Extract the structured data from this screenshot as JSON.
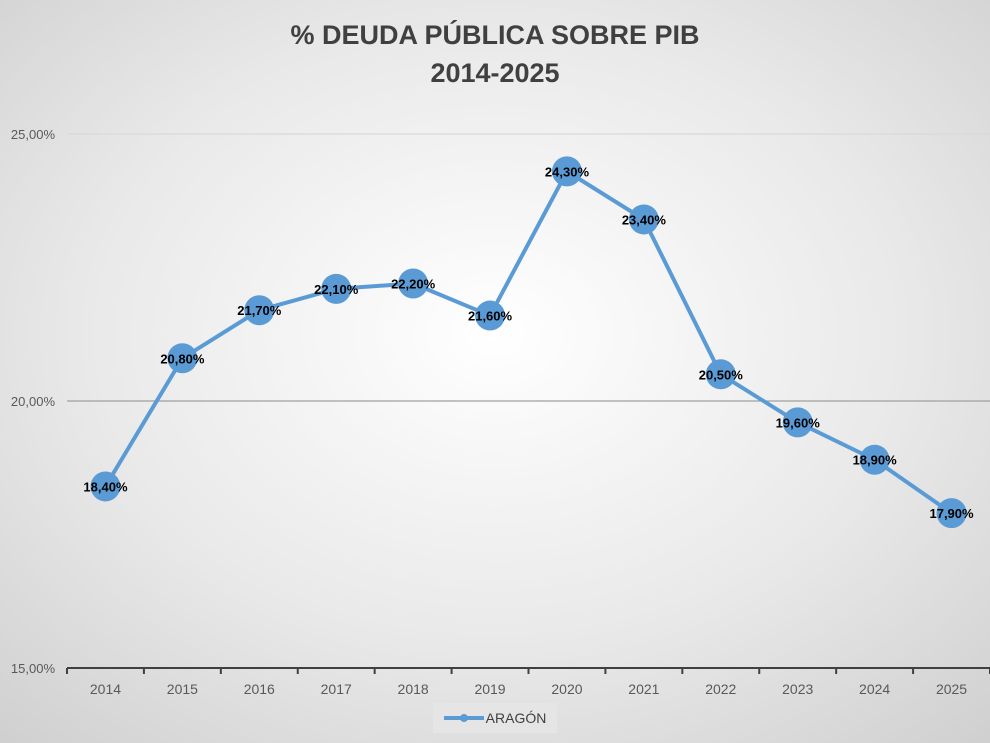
{
  "chart_data": {
    "type": "line",
    "title": "% DEUDA PÚBLICA SOBRE PIB",
    "subtitle": "2014-2025",
    "categories": [
      "2014",
      "2015",
      "2016",
      "2017",
      "2018",
      "2019",
      "2020",
      "2021",
      "2022",
      "2023",
      "2024",
      "2025"
    ],
    "series": [
      {
        "name": "ARAGÓN",
        "values": [
          18.4,
          20.8,
          21.7,
          22.1,
          22.2,
          21.6,
          24.3,
          23.4,
          20.5,
          19.6,
          18.9,
          17.9
        ],
        "labels": [
          "18,40%",
          "20,80%",
          "21,70%",
          "22,10%",
          "22,20%",
          "21,60%",
          "24,30%",
          "23,40%",
          "20,50%",
          "19,60%",
          "18,90%",
          "17,90%"
        ],
        "color": "#5b9bd5"
      }
    ],
    "yticks": [
      15,
      20,
      25
    ],
    "ytick_labels": [
      "15,00%",
      "20,00%",
      "25,00%"
    ],
    "ylim": [
      15,
      25
    ],
    "grid": true,
    "legend": "bottom",
    "xlabel": "",
    "ylabel": ""
  }
}
